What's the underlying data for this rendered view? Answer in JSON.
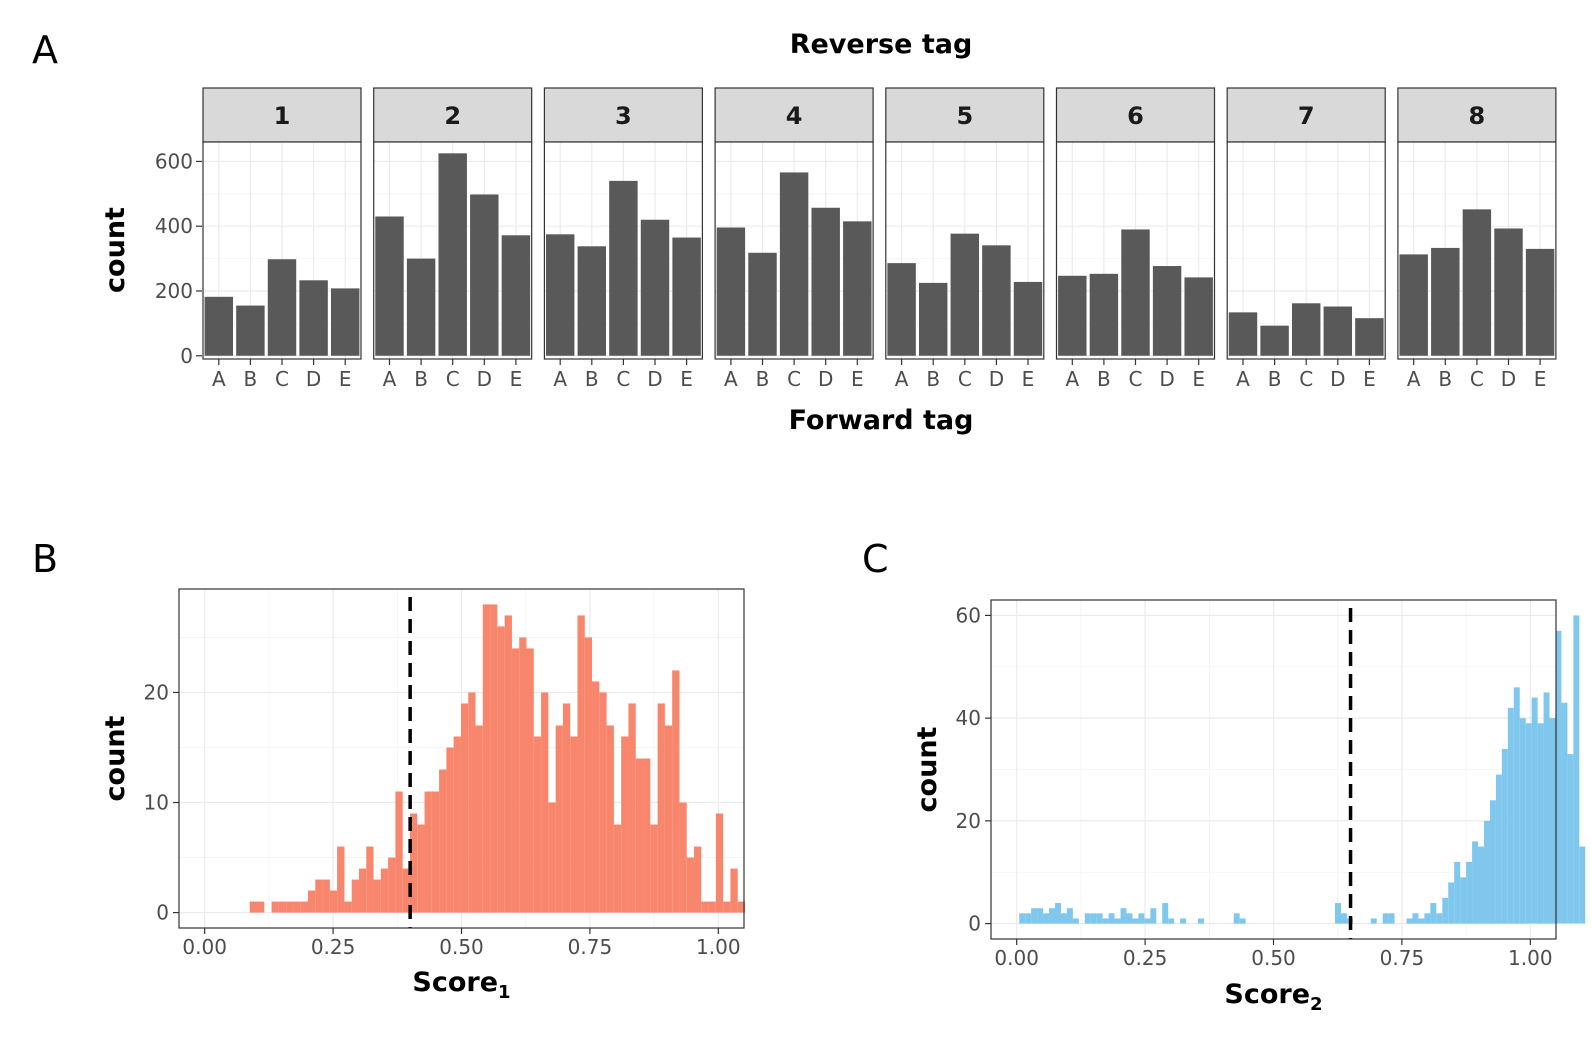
{
  "panels": {
    "A": {
      "letter": "A"
    },
    "B": {
      "letter": "B"
    },
    "C": {
      "letter": "C"
    }
  },
  "colors": {
    "bar": "#595959",
    "strip_fill": "#d9d9d9",
    "hist_b": "#f8866c",
    "hist_c": "#7fc7ec",
    "grid": "#ebebeb",
    "frame": "#333333",
    "cutoff": "#000000"
  },
  "chart_data": [
    {
      "id": "A",
      "type": "bar",
      "title": "Reverse tag",
      "xlabel": "Forward tag",
      "ylabel": "count",
      "ylim": [
        0,
        660
      ],
      "yticks": [
        0,
        200,
        400,
        600
      ],
      "categories": [
        "A",
        "B",
        "C",
        "D",
        "E"
      ],
      "facets": [
        {
          "label": "1",
          "values": [
            182,
            155,
            298,
            233,
            208
          ]
        },
        {
          "label": "2",
          "values": [
            430,
            300,
            625,
            498,
            372
          ]
        },
        {
          "label": "3",
          "values": [
            375,
            338,
            540,
            420,
            365
          ]
        },
        {
          "label": "4",
          "values": [
            396,
            318,
            566,
            457,
            415
          ]
        },
        {
          "label": "5",
          "values": [
            286,
            225,
            377,
            341,
            228
          ]
        },
        {
          "label": "6",
          "values": [
            247,
            253,
            390,
            277,
            242
          ]
        },
        {
          "label": "7",
          "values": [
            134,
            93,
            162,
            152,
            116
          ]
        },
        {
          "label": "8",
          "values": [
            313,
            333,
            452,
            393,
            330
          ]
        }
      ],
      "grid": true
    },
    {
      "id": "B",
      "type": "bar",
      "subtype": "histogram",
      "xlabel": "Score",
      "xlabel_sub": "1",
      "ylabel": "count",
      "xlim": [
        -0.05,
        1.05
      ],
      "ylim": [
        -1.4,
        29.4
      ],
      "xticks": [
        "0.00",
        "0.25",
        "0.50",
        "0.75",
        "1.00"
      ],
      "yticks": [
        0,
        10,
        20
      ],
      "cutoff": 0.4,
      "bin_start": 0.0877,
      "bin_width": 0.01418,
      "values": [
        1,
        1,
        0,
        1,
        1,
        1,
        1,
        1,
        2,
        3,
        3,
        2,
        6,
        1,
        3,
        4,
        6,
        3,
        4,
        5,
        11,
        4,
        9,
        8,
        11,
        11,
        13,
        15,
        16,
        19,
        20,
        17,
        28,
        28,
        26,
        27,
        24,
        25,
        24,
        16,
        20,
        10,
        17,
        19,
        16,
        27,
        25,
        21,
        20,
        17,
        8,
        16,
        19,
        14,
        14,
        8,
        19,
        17,
        22,
        10,
        5,
        6,
        1,
        1,
        9,
        1,
        4,
        1
      ]
    },
    {
      "id": "C",
      "type": "bar",
      "subtype": "histogram",
      "xlabel": "Score",
      "xlabel_sub": "2",
      "ylabel": "count",
      "xlim": [
        -0.05,
        1.05
      ],
      "ylim": [
        -3,
        63
      ],
      "xticks": [
        "0.00",
        "0.25",
        "0.50",
        "0.75",
        "1.00"
      ],
      "yticks": [
        0,
        20,
        40,
        60
      ],
      "cutoff": 0.65,
      "bin_start": 0.005,
      "bin_width": 0.0116,
      "values": [
        2,
        2,
        3,
        3,
        2,
        3,
        4,
        2,
        3,
        1,
        0,
        2,
        2,
        2,
        1,
        2,
        1,
        3,
        2,
        1,
        2,
        1,
        3,
        0,
        4,
        1,
        0,
        1,
        0,
        0,
        1,
        0,
        0,
        0,
        0,
        0,
        2,
        1,
        0,
        0,
        0,
        0,
        0,
        0,
        0,
        0,
        0,
        0,
        0,
        0,
        0,
        0,
        0,
        4,
        2,
        1,
        0,
        0,
        0,
        1,
        0,
        2,
        2,
        0,
        0,
        1,
        2,
        1,
        2,
        4,
        2,
        5,
        8,
        12,
        9,
        12,
        16,
        15,
        20,
        24,
        29,
        34,
        42,
        46,
        40,
        39,
        44,
        39,
        45,
        40,
        57,
        43,
        33,
        60,
        15
      ]
    }
  ]
}
